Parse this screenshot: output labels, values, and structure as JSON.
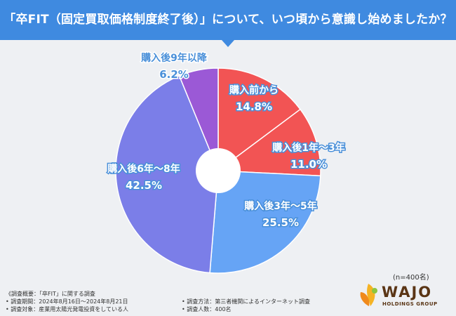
{
  "header": {
    "title": "「卒FIT（固定買取価格制度終了後）」について、いつ頃から意識し始めましたか？"
  },
  "chart_data": {
    "type": "pie",
    "donut": true,
    "title": "「卒FIT（固定買取価格制度終了後）」について、いつ頃から意識し始めましたか？",
    "slices": [
      {
        "label": "購入前から",
        "value": 14.8,
        "value_label": "14.8%",
        "color": "#f25454"
      },
      {
        "label": "購入後1年～3年",
        "value": 11.0,
        "value_label": "11.0%",
        "color": "#f25454"
      },
      {
        "label": "購入後3年～5年",
        "value": 25.5,
        "value_label": "25.5%",
        "color": "#66a4f5"
      },
      {
        "label": "購入後6年～8年",
        "value": 42.5,
        "value_label": "42.5%",
        "color": "#7b7ee8"
      },
      {
        "label": "購入後9年以降",
        "value": 6.2,
        "value_label": "6.2%",
        "color": "#9b59d6"
      }
    ],
    "label_colors": {
      "inside": "#ffffff",
      "outside": "#4a90d9"
    },
    "sample_size": "(n=400名)"
  },
  "notes": {
    "overview": "《調査概要：「卒FIT」に関する調査",
    "period": "• 調査期間：2024年8月16日～2024年8月21日",
    "target": "• 調査対象：産業用太陽光発電投資をしている人",
    "method": "• 調査方法：第三者機関によるインターネット調査",
    "count": "• 調査人数：400名"
  },
  "logo": {
    "name": "WAJO",
    "sub": "HOLDINGS GROUP"
  }
}
